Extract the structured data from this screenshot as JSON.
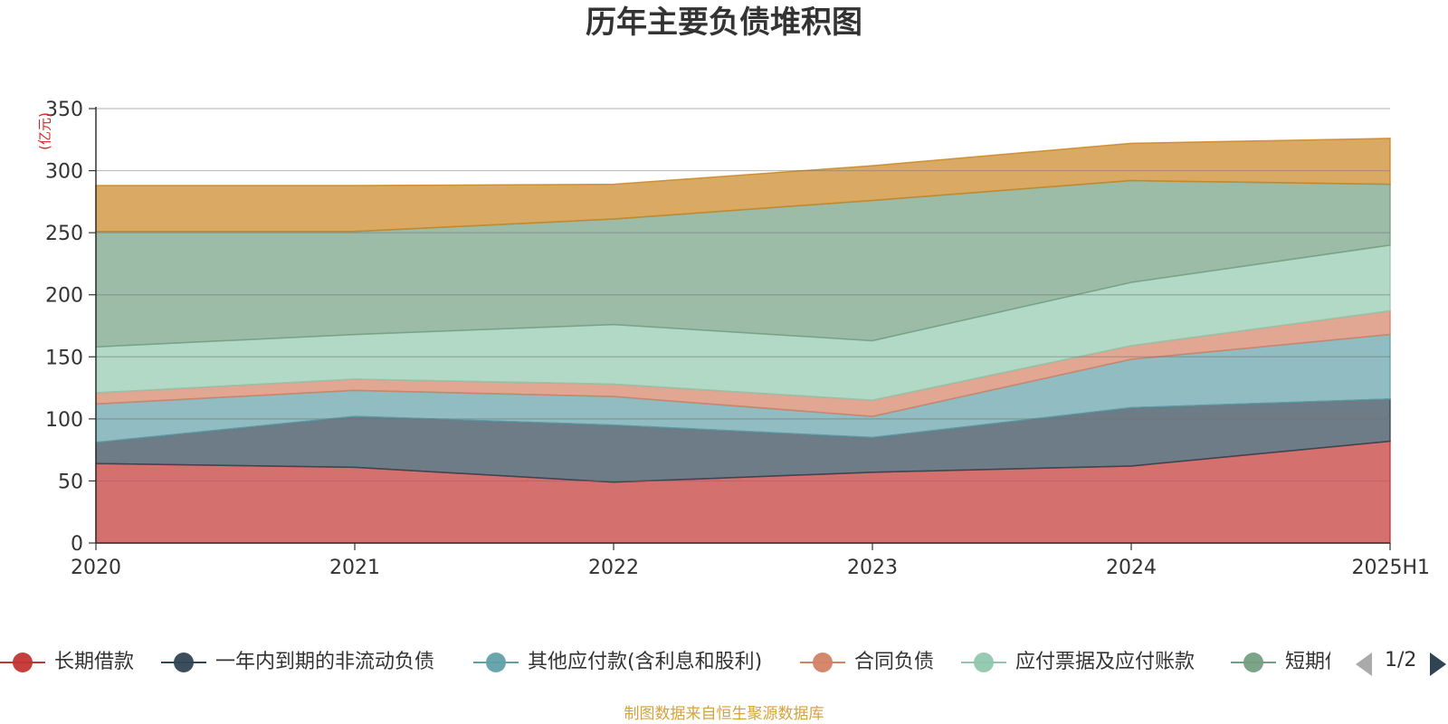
{
  "chart_data": {
    "type": "area",
    "title": "历年主要负债堆积图",
    "ylabel": "(亿元)",
    "xlabel": "",
    "categories": [
      "2020",
      "2021",
      "2022",
      "2023",
      "2024",
      "2025H1"
    ],
    "ylim": [
      0,
      350
    ],
    "yticks": [
      0,
      50,
      100,
      150,
      200,
      250,
      300,
      350
    ],
    "stacked": true,
    "grid": true,
    "legend_position": "bottom",
    "series": [
      {
        "name": "长期借款",
        "color": "#c23531",
        "values": [
          64,
          61,
          49,
          57,
          62,
          82
        ]
      },
      {
        "name": "一年内到期的非流动负债",
        "color": "#2f4554",
        "values": [
          17,
          41,
          46,
          28,
          47,
          34
        ]
      },
      {
        "name": "其他应付款(含利息和股利)",
        "color": "#61a0a8",
        "values": [
          31,
          21,
          23,
          17,
          39,
          52
        ]
      },
      {
        "name": "合同负债",
        "color": "#d48265",
        "values": [
          9,
          9,
          10,
          13,
          11,
          19
        ]
      },
      {
        "name": "应付票据及应付账款",
        "color": "#91c7ae",
        "values": [
          37,
          36,
          48,
          48,
          51,
          53
        ]
      },
      {
        "name": "短期借款",
        "color": "#749f83",
        "values": [
          93,
          83,
          85,
          113,
          82,
          49
        ]
      },
      {
        "name": "",
        "color": "#ca8622",
        "values": [
          37,
          37,
          28,
          28,
          30,
          37
        ]
      }
    ]
  },
  "legend": {
    "items": [
      "长期借款",
      "一年内到期的非流动负债",
      "其他应付款(含利息和股利)",
      "合同负债",
      "应付票据及应付账款",
      "短期借款"
    ],
    "page": "1/2"
  },
  "source_note": "制图数据来自恒生聚源数据库"
}
